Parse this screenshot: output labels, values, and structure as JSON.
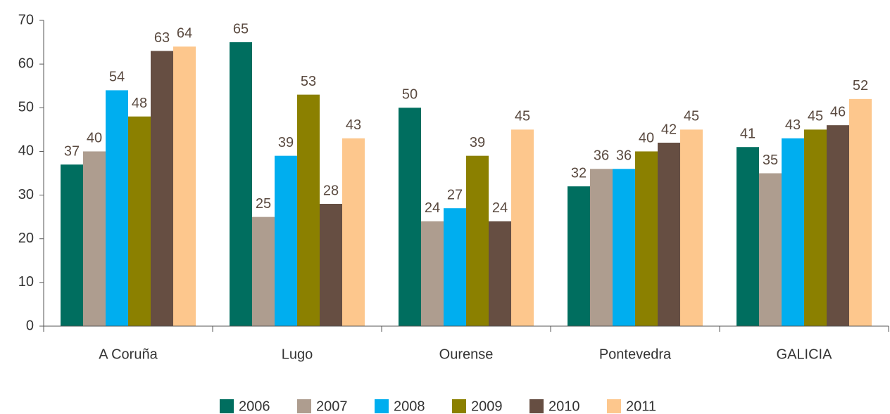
{
  "chart_data": {
    "type": "bar",
    "categories": [
      "A Coruña",
      "Lugo",
      "Ourense",
      "Pontevedra",
      "GALICIA"
    ],
    "series": [
      {
        "name": "2006",
        "color": "#006e5f",
        "values": [
          37,
          65,
          50,
          32,
          41
        ]
      },
      {
        "name": "2007",
        "color": "#ae9d8f",
        "values": [
          40,
          25,
          24,
          36,
          35
        ]
      },
      {
        "name": "2008",
        "color": "#00aeef",
        "values": [
          54,
          39,
          27,
          36,
          43
        ]
      },
      {
        "name": "2009",
        "color": "#8b8000",
        "values": [
          48,
          53,
          39,
          40,
          45
        ]
      },
      {
        "name": "2010",
        "color": "#664e42",
        "values": [
          63,
          28,
          24,
          42,
          46
        ]
      },
      {
        "name": "2011",
        "color": "#fdc78d",
        "values": [
          64,
          43,
          45,
          45,
          52
        ]
      }
    ],
    "ylim": [
      0,
      70
    ],
    "yticks": [
      0,
      10,
      20,
      30,
      40,
      50,
      60,
      70
    ],
    "legend": "bottom"
  }
}
